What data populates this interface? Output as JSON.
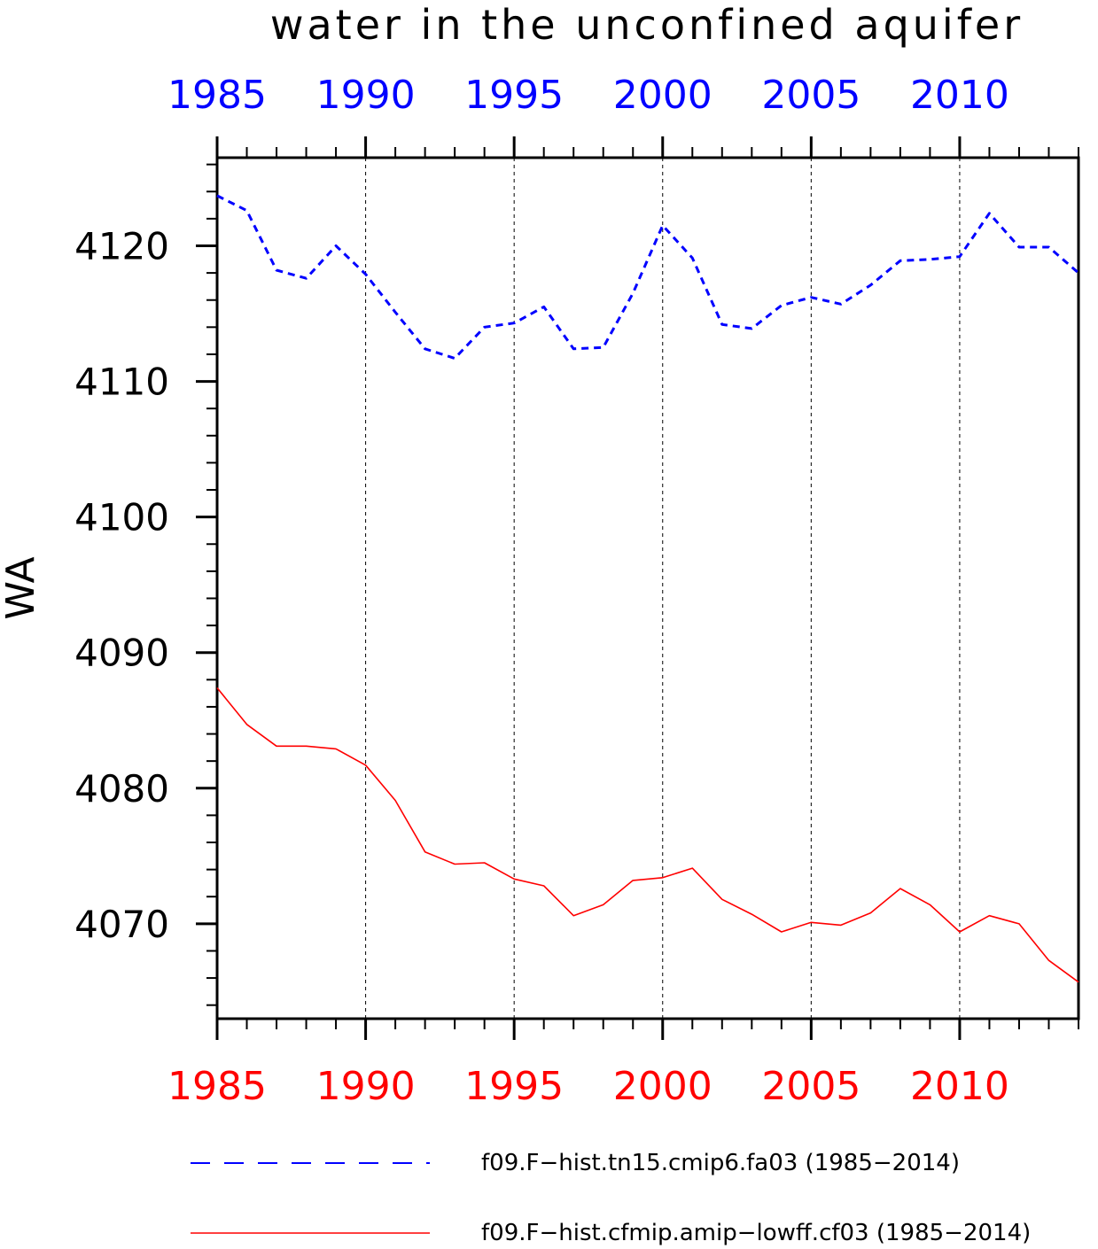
{
  "chart_data": {
    "type": "line",
    "title": "water in the unconfined aquifer",
    "ylabel": "WA",
    "xlabel": "",
    "xlim": [
      1985,
      2014
    ],
    "ylim": [
      4063.0,
      4126.5
    ],
    "x_ticks": [
      1985,
      1990,
      1995,
      2000,
      2005,
      2010
    ],
    "x_tick_labels": [
      "1985",
      "1990",
      "1995",
      "2000",
      "2005",
      "2010"
    ],
    "y_ticks": [
      4070,
      4080,
      4090,
      4100,
      4110,
      4120
    ],
    "y_tick_labels": [
      "4070",
      "4080",
      "4090",
      "4100",
      "4110",
      "4120"
    ],
    "x_grid": "dashed vertical lines at major x ticks",
    "top_axis_color": "#0000ff",
    "bottom_axis_color": "#ff0000",
    "legend_position": "bottom",
    "x": [
      1985,
      1986,
      1987,
      1988,
      1989,
      1990,
      1991,
      1992,
      1993,
      1994,
      1995,
      1996,
      1997,
      1998,
      1999,
      2000,
      2001,
      2002,
      2003,
      2004,
      2005,
      2006,
      2007,
      2008,
      2009,
      2010,
      2011,
      2012,
      2013,
      2014
    ],
    "series": [
      {
        "name": "f09.F−hist.tn15.cmip6.fa03 (1985−2014)",
        "color": "#0000ff",
        "dash": "dashed",
        "values": [
          4123.7,
          4122.6,
          4118.2,
          4117.6,
          4120.0,
          4117.9,
          4115.1,
          4112.4,
          4111.7,
          4114.0,
          4114.3,
          4115.5,
          4112.4,
          4112.5,
          4116.5,
          4121.5,
          4119.1,
          4114.2,
          4113.9,
          4115.6,
          4116.2,
          4115.7,
          4117.1,
          4118.9,
          4119.0,
          4119.2,
          4122.4,
          4119.9,
          4119.9,
          4118.0
        ]
      },
      {
        "name": "f09.F−hist.cfmip.amip−lowff.cf03 (1985−2014)",
        "color": "#ff0000",
        "dash": "solid",
        "values": [
          4087.4,
          4084.7,
          4083.1,
          4083.1,
          4082.9,
          4081.7,
          4079.1,
          4075.3,
          4074.4,
          4074.5,
          4073.3,
          4072.8,
          4070.6,
          4071.4,
          4073.2,
          4073.4,
          4074.1,
          4071.8,
          4070.7,
          4069.4,
          4070.1,
          4069.9,
          4070.8,
          4072.6,
          4071.4,
          4069.4,
          4070.6,
          4070.0,
          4067.3,
          4065.7
        ]
      }
    ]
  }
}
